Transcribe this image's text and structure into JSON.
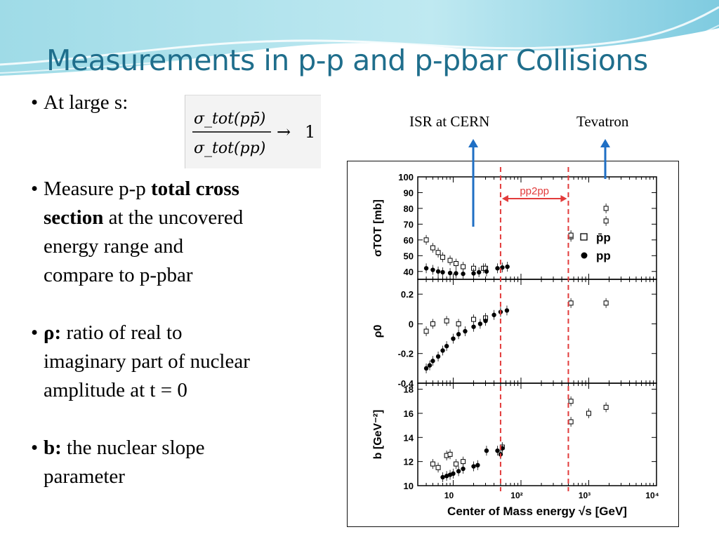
{
  "slide": {
    "title": "Measurements in p-p and p-pbar Collisions"
  },
  "bullets": [
    {
      "id": "large-s",
      "text": "At large s:"
    },
    {
      "id": "measure",
      "lines": [
        "Measure p-p ",
        "total cross",
        "section",
        " at the uncovered",
        "energy range and",
        "compare to p-pbar"
      ]
    },
    {
      "id": "rho",
      "bold": "ρ:",
      "lines": [
        " ratio of real to",
        "imaginary part of nuclear",
        "amplitude at t = 0"
      ]
    },
    {
      "id": "b",
      "bold": "b:",
      "lines": [
        " the nuclear slope",
        "parameter"
      ]
    }
  ],
  "formula": {
    "numerator": "σ_tot(pp̄)",
    "denominator": "σ_tot(pp)",
    "arrow": "→",
    "limit": "1"
  },
  "annotations": {
    "isr": "ISR at CERN",
    "tevatron": "Tevatron",
    "pp2pp": "pp2pp",
    "arrow_color": "#1f6fc4",
    "dashed_color": "#e23b3b"
  },
  "chart_data": {
    "type": "scatter",
    "xlabel": "Center of Mass energy √s [GeV]",
    "xscale": "log",
    "xlim": [
      3,
      10000
    ],
    "x_ticks": [
      "10",
      "10²",
      "10³",
      "10⁴"
    ],
    "vlines_gev": [
      50,
      500
    ],
    "legend": [
      {
        "symbol": "open-square",
        "label": "p̄p"
      },
      {
        "symbol": "filled-circle",
        "label": "pp"
      }
    ],
    "panels": [
      {
        "id": "sigma",
        "ylabel": "σTOT [mb]",
        "ylim": [
          35,
          100
        ],
        "yticks": [
          "40",
          "50",
          "60",
          "70",
          "80",
          "90",
          "100"
        ],
        "ytick_values": [
          40,
          50,
          60,
          70,
          80,
          90,
          100
        ],
        "series": [
          {
            "name": "p̄p",
            "marker": "open",
            "points": [
              [
                4,
                60
              ],
              [
                5,
                55
              ],
              [
                6,
                52
              ],
              [
                7,
                49
              ],
              [
                9,
                47
              ],
              [
                11,
                45
              ],
              [
                14,
                43
              ],
              [
                20,
                42
              ],
              [
                28,
                42
              ],
              [
                30,
                42
              ],
              [
                546,
                62
              ],
              [
                546,
                63
              ],
              [
                1800,
                80
              ],
              [
                1800,
                72
              ]
            ]
          },
          {
            "name": "pp",
            "marker": "filled",
            "points": [
              [
                4,
                42
              ],
              [
                5,
                41
              ],
              [
                6,
                40
              ],
              [
                7,
                39.5
              ],
              [
                9,
                39
              ],
              [
                11,
                38.8
              ],
              [
                14,
                38.5
              ],
              [
                20,
                38.8
              ],
              [
                24,
                39.5
              ],
              [
                31,
                40
              ],
              [
                45,
                42
              ],
              [
                53,
                42.5
              ],
              [
                63,
                43
              ]
            ]
          }
        ]
      },
      {
        "id": "rho",
        "ylabel": "ρ0",
        "ylim": [
          -0.4,
          0.3
        ],
        "yticks": [
          "0.2",
          "0",
          "-0.2",
          "-0.4"
        ],
        "ytick_values": [
          0.2,
          0,
          -0.2,
          -0.4
        ],
        "series": [
          {
            "name": "p̄p",
            "marker": "open",
            "points": [
              [
                4,
                -0.05
              ],
              [
                5,
                0
              ],
              [
                8,
                0.02
              ],
              [
                12,
                0.0
              ],
              [
                20,
                0.03
              ],
              [
                30,
                0.04
              ],
              [
                546,
                0.14
              ],
              [
                1800,
                0.14
              ]
            ]
          },
          {
            "name": "pp",
            "marker": "filled",
            "points": [
              [
                4,
                -0.3
              ],
              [
                4.5,
                -0.28
              ],
              [
                5,
                -0.25
              ],
              [
                6,
                -0.22
              ],
              [
                7,
                -0.18
              ],
              [
                8,
                -0.15
              ],
              [
                10,
                -0.1
              ],
              [
                12,
                -0.07
              ],
              [
                15,
                -0.05
              ],
              [
                20,
                -0.02
              ],
              [
                25,
                0.0
              ],
              [
                30,
                0.02
              ],
              [
                40,
                0.06
              ],
              [
                50,
                0.08
              ],
              [
                62,
                0.09
              ]
            ]
          }
        ]
      },
      {
        "id": "b",
        "ylabel": "b [GeV⁻²]",
        "ylim": [
          10,
          18.5
        ],
        "yticks": [
          "10",
          "12",
          "14",
          "16",
          "18"
        ],
        "ytick_values": [
          10,
          12,
          14,
          16,
          18
        ],
        "series": [
          {
            "name": "p̄p",
            "marker": "open",
            "points": [
              [
                5,
                11.8
              ],
              [
                6,
                11.5
              ],
              [
                8,
                12.5
              ],
              [
                9,
                12.6
              ],
              [
                11,
                11.8
              ],
              [
                14,
                12.0
              ],
              [
                53,
                13.2
              ],
              [
                546,
                17.0
              ],
              [
                546,
                15.3
              ],
              [
                1000,
                16.0
              ],
              [
                1800,
                16.5
              ]
            ]
          },
          {
            "name": "pp",
            "marker": "filled",
            "points": [
              [
                7,
                10.7
              ],
              [
                8,
                10.8
              ],
              [
                9,
                10.9
              ],
              [
                10,
                11.0
              ],
              [
                12,
                11.2
              ],
              [
                14,
                11.4
              ],
              [
                20,
                11.6
              ],
              [
                23,
                11.7
              ],
              [
                31,
                12.9
              ],
              [
                45,
                12.9
              ],
              [
                50,
                12.6
              ],
              [
                53,
                13.1
              ]
            ]
          }
        ]
      }
    ]
  }
}
